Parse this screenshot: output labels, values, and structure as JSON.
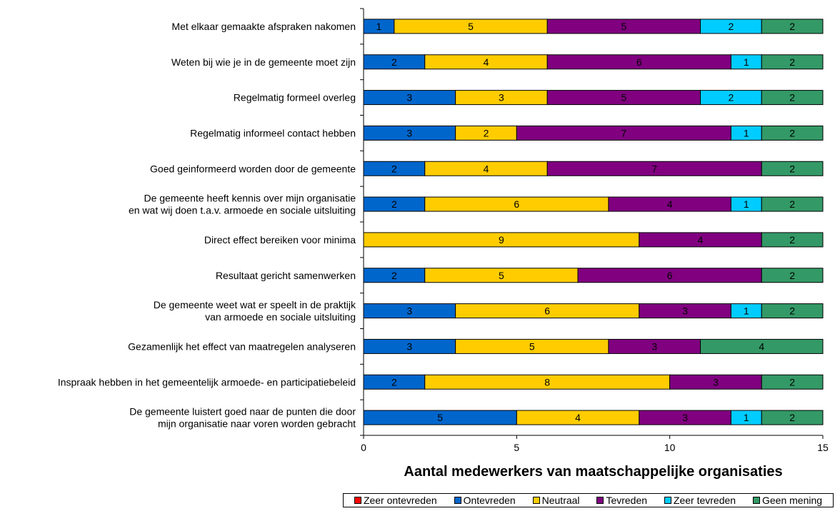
{
  "chart_data": {
    "type": "bar",
    "orientation": "horizontal",
    "stacked": true,
    "categories": [
      [
        "Met elkaar gemaakte afspraken nakomen"
      ],
      [
        "Weten bij wie je in de gemeente moet zijn"
      ],
      [
        "Regelmatig formeel overleg"
      ],
      [
        "Regelmatig informeel contact hebben"
      ],
      [
        "Goed geinformeerd worden door de gemeente"
      ],
      [
        "De gemeente heeft kennis over mijn organisatie",
        "en wat wij doen t.a.v. armoede en sociale uitsluiting"
      ],
      [
        "Direct effect bereiken voor minima"
      ],
      [
        "Resultaat gericht samenwerken"
      ],
      [
        "De gemeente weet wat er speelt in de praktijk",
        "van armoede en sociale uitsluiting"
      ],
      [
        "Gezamenlijk het effect van maatregelen analyseren"
      ],
      [
        "Inspraak hebben in het gemeentelijk armoede- en participatiebeleid"
      ],
      [
        "De gemeente luistert goed naar de punten die door",
        "mijn organisatie naar voren worden gebracht"
      ]
    ],
    "series": [
      {
        "name": "Zeer ontevreden",
        "color": "#ff0000",
        "values": [
          0,
          0,
          0,
          0,
          0,
          0,
          0,
          0,
          0,
          0,
          0,
          0
        ]
      },
      {
        "name": "Ontevreden",
        "color": "#0066cc",
        "values": [
          1,
          2,
          3,
          3,
          2,
          2,
          0,
          2,
          3,
          3,
          2,
          5
        ]
      },
      {
        "name": "Neutraal",
        "color": "#ffcc00",
        "values": [
          5,
          4,
          3,
          2,
          4,
          6,
          9,
          5,
          6,
          5,
          8,
          4
        ]
      },
      {
        "name": "Tevreden",
        "color": "#800080",
        "values": [
          5,
          6,
          5,
          7,
          7,
          4,
          4,
          6,
          3,
          3,
          3,
          3
        ]
      },
      {
        "name": "Zeer tevreden",
        "color": "#00ccff",
        "values": [
          2,
          1,
          2,
          1,
          0,
          1,
          0,
          0,
          1,
          0,
          0,
          1
        ]
      },
      {
        "name": "Geen mening",
        "color": "#339966",
        "values": [
          2,
          2,
          2,
          2,
          2,
          2,
          2,
          2,
          2,
          4,
          2,
          2
        ]
      }
    ],
    "xlabel": "Aantal medewerkers van maatschappelijke organisaties",
    "xlim": [
      0,
      15
    ],
    "xticks": [
      "0",
      "5",
      "10",
      "15"
    ],
    "legend_position": "bottom-right"
  }
}
